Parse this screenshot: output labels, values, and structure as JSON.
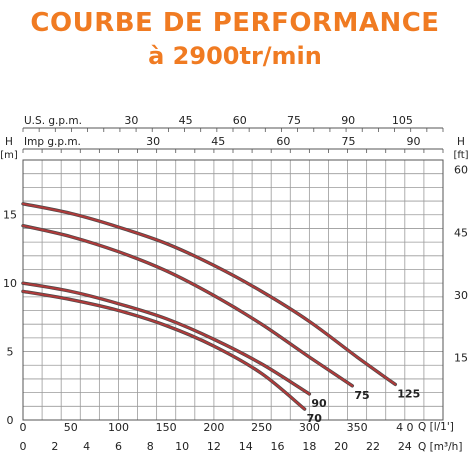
{
  "header": {
    "title": "COURBE DE PERFORMANCE",
    "subtitle": "à 2900tr/min"
  },
  "chart_data": {
    "type": "line",
    "color": "#b03a3a",
    "axes": {
      "left_label_h": "H",
      "left_label_unit": "[m]",
      "right_label_h": "H",
      "right_label_unit": "[ft]",
      "top1_label": "U.S.  g.p.m.",
      "top2_label": "Imp  g.p.m.",
      "bottom1_label": "Q [l/1']",
      "bottom2_label": "Q [m³/h]",
      "ylim_m": [
        0,
        19
      ],
      "xlim_lpm": [
        0,
        440
      ]
    },
    "ticks": {
      "left_m": [
        {
          "v": 0,
          "label": "0"
        },
        {
          "v": 5,
          "label": "5"
        },
        {
          "v": 10,
          "label": "10"
        },
        {
          "v": 15,
          "label": "15"
        }
      ],
      "right_ft": [
        {
          "v": 15,
          "label": "15"
        },
        {
          "v": 30,
          "label": "30"
        },
        {
          "v": 45,
          "label": "45"
        },
        {
          "v": 60,
          "label": "60"
        }
      ],
      "bottom_lpm": [
        {
          "v": 0,
          "label": "0"
        },
        {
          "v": 50,
          "label": "50"
        },
        {
          "v": 100,
          "label": "100"
        },
        {
          "v": 150,
          "label": "150"
        },
        {
          "v": 200,
          "label": "200"
        },
        {
          "v": 250,
          "label": "250"
        },
        {
          "v": 300,
          "label": "300"
        },
        {
          "v": 350,
          "label": "350"
        },
        {
          "v": 400,
          "label": "4 0"
        }
      ],
      "bottom_m3h": [
        {
          "v": 0,
          "label": "0"
        },
        {
          "v": 2,
          "label": "2"
        },
        {
          "v": 4,
          "label": "4"
        },
        {
          "v": 6,
          "label": "6"
        },
        {
          "v": 8,
          "label": "8"
        },
        {
          "v": 10,
          "label": "10"
        },
        {
          "v": 12,
          "label": "12"
        },
        {
          "v": 14,
          "label": "14"
        },
        {
          "v": 16,
          "label": "16"
        },
        {
          "v": 18,
          "label": "18"
        },
        {
          "v": 20,
          "label": "20"
        },
        {
          "v": 22,
          "label": "22"
        },
        {
          "v": 24,
          "label": "24"
        }
      ],
      "top_us_gpm": [
        {
          "v": 30,
          "label": "30"
        },
        {
          "v": 45,
          "label": "45"
        },
        {
          "v": 60,
          "label": "60"
        },
        {
          "v": 75,
          "label": "75"
        },
        {
          "v": 90,
          "label": "90"
        },
        {
          "v": 105,
          "label": "105"
        }
      ],
      "top_imp_gpm": [
        {
          "v": 30,
          "label": "30"
        },
        {
          "v": 45,
          "label": "45"
        },
        {
          "v": 60,
          "label": "60"
        },
        {
          "v": 75,
          "label": "75"
        },
        {
          "v": 90,
          "label": "90"
        }
      ]
    },
    "series": [
      {
        "name": "125",
        "x": [
          0,
          50,
          100,
          150,
          200,
          250,
          300,
          350,
          390
        ],
        "y": [
          15.8,
          15.1,
          14.1,
          12.9,
          11.3,
          9.4,
          7.2,
          4.6,
          2.6
        ]
      },
      {
        "name": "75",
        "x": [
          0,
          50,
          100,
          150,
          200,
          250,
          300,
          345
        ],
        "y": [
          14.2,
          13.4,
          12.3,
          10.9,
          9.1,
          7.0,
          4.6,
          2.5
        ]
      },
      {
        "name": "90",
        "x": [
          0,
          50,
          100,
          150,
          200,
          250,
          300
        ],
        "y": [
          10.0,
          9.4,
          8.5,
          7.4,
          5.9,
          4.1,
          1.9
        ]
      },
      {
        "name": "70",
        "x": [
          0,
          50,
          100,
          150,
          200,
          250,
          295
        ],
        "y": [
          9.4,
          8.8,
          8.0,
          6.9,
          5.4,
          3.4,
          0.8
        ]
      }
    ]
  }
}
